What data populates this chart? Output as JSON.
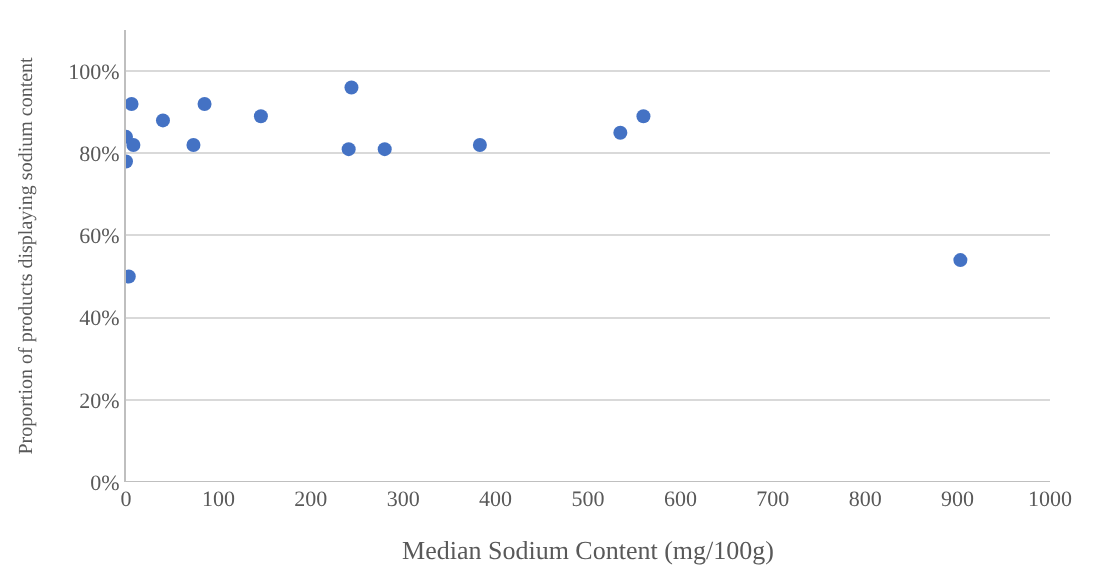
{
  "chart_data": {
    "type": "scatter",
    "xlabel": "Median Sodium Content (mg/100g)",
    "ylabel": "Proportion of products displaying sodium content",
    "x": [
      0,
      0,
      6,
      8,
      3,
      40,
      73,
      85,
      146,
      241,
      244,
      280,
      383,
      535,
      560,
      903
    ],
    "series": [
      {
        "color": "#4472c4",
        "values": [
          78,
          84,
          92,
          82,
          50,
          88,
          82,
          92,
          89,
          81,
          96,
          81,
          82,
          85,
          89,
          54
        ]
      }
    ],
    "xlim": [
      0,
      1000
    ],
    "xticks": [
      0,
      100,
      200,
      300,
      400,
      500,
      600,
      700,
      800,
      900,
      1000
    ],
    "ylim": [
      0,
      110
    ],
    "yticks": [
      {
        "value": 0,
        "label": "0%"
      },
      {
        "value": 20,
        "label": "20%"
      },
      {
        "value": 40,
        "label": "40%"
      },
      {
        "value": 60,
        "label": "60%"
      },
      {
        "value": 80,
        "label": "80%"
      },
      {
        "value": 100,
        "label": "100%"
      }
    ],
    "grid": "y",
    "marker": "circle",
    "legend": false
  }
}
